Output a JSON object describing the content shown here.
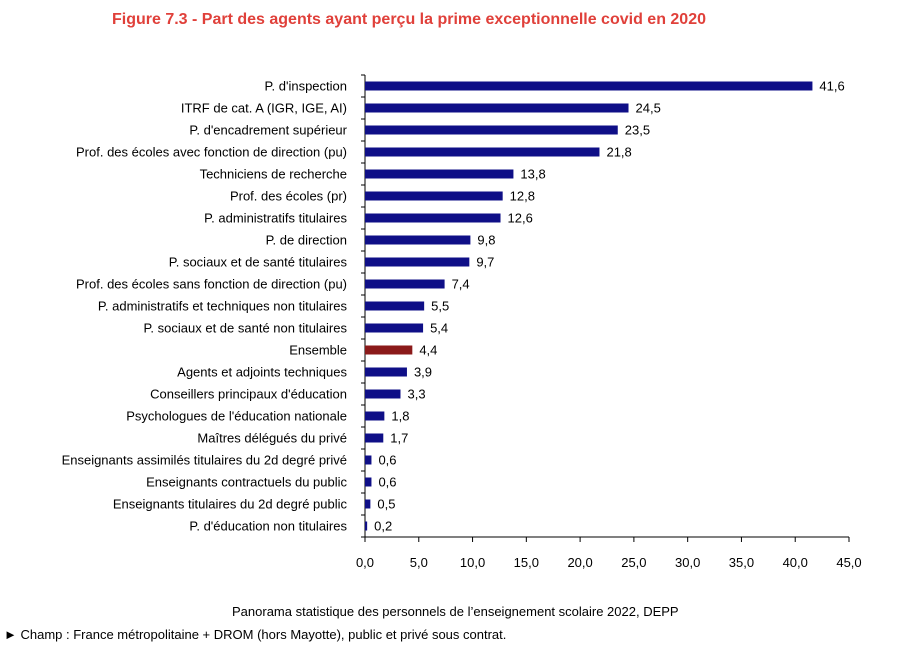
{
  "title": "Figure 7.3 - Part des agents ayant perçu la prime exceptionnelle covid en 2020",
  "source": "Panorama statistique des personnels de l’enseignement scolaire 2022, DEPP",
  "scope": "► Champ : France métropolitaine + DROM (hors Mayotte), public et privé sous contrat.",
  "chart_data": {
    "type": "bar",
    "orientation": "horizontal",
    "title": "Figure 7.3 - Part des agents ayant perçu la prime exceptionnelle covid en 2020",
    "xlabel": "",
    "ylabel": "",
    "xlim": [
      0,
      45
    ],
    "xticks": [
      "0,0",
      "5,0",
      "10,0",
      "15,0",
      "20,0",
      "25,0",
      "30,0",
      "35,0",
      "40,0",
      "45,0"
    ],
    "grid": false,
    "categories": [
      "P. d'inspection",
      "ITRF de cat. A (IGR, IGE, AI)",
      "P. d'encadrement supérieur",
      "Prof. des écoles avec fonction de direction (pu)",
      "Techniciens de recherche",
      "Prof. des écoles (pr)",
      "P. administratifs titulaires",
      "P. de direction",
      "P. sociaux et de santé titulaires",
      "Prof. des écoles sans fonction de direction (pu)",
      "P. administratifs et techniques non titulaires",
      "P. sociaux et de santé non titulaires",
      "Ensemble",
      "Agents et adjoints techniques",
      "Conseillers principaux d'éducation",
      "Psychologues de l'éducation nationale",
      "Maîtres délégués du privé",
      "Enseignants assimilés titulaires du 2d degré privé",
      "Enseignants contractuels du public",
      "Enseignants titulaires du 2d degré public",
      "P. d'éducation non titulaires"
    ],
    "values": [
      41.6,
      24.5,
      23.5,
      21.8,
      13.8,
      12.8,
      12.6,
      9.8,
      9.7,
      7.4,
      5.5,
      5.4,
      4.4,
      3.9,
      3.3,
      1.8,
      1.7,
      0.6,
      0.6,
      0.5,
      0.2
    ],
    "value_labels": [
      "41,6",
      "24,5",
      "23,5",
      "21,8",
      "13,8",
      "12,8",
      "12,6",
      "9,8",
      "9,7",
      "7,4",
      "5,5",
      "5,4",
      "4,4",
      "3,9",
      "3,3",
      "1,8",
      "1,7",
      "0,6",
      "0,6",
      "0,5",
      "0,2"
    ],
    "colors": {
      "default": "#0f0f87",
      "highlight": "#8b1a1a"
    },
    "highlight_category": "Ensemble"
  }
}
